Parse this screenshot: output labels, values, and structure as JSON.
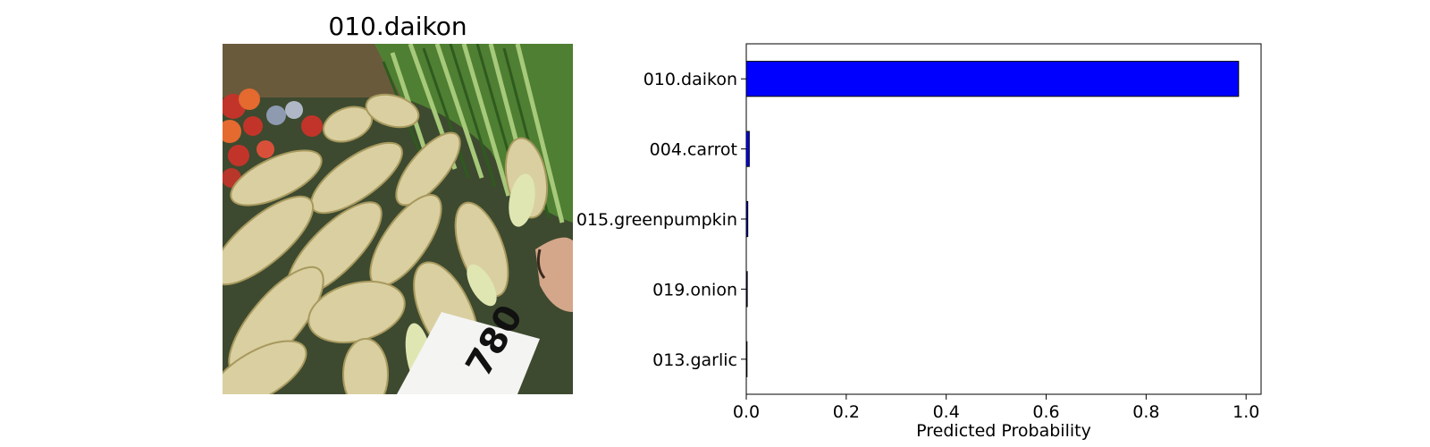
{
  "image_panel": {
    "title": "010.daikon",
    "sign_text": "780",
    "colors": {
      "background": "#3d4a2f",
      "daikon": "#d9cfa0",
      "daikon_shadow": "#a8995e",
      "daikon_tip": "#dfe6b2",
      "greens": "#4f7f32",
      "greens_light": "#a7c97a",
      "shelf_red": "#c2342a",
      "shelf_orange": "#e46a2f",
      "sign": "#f4f4f2"
    }
  },
  "chart_data": {
    "type": "bar",
    "orientation": "horizontal",
    "categories": [
      "010.daikon",
      "004.carrot",
      "015.greenpumpkin",
      "019.onion",
      "013.garlic"
    ],
    "values": [
      0.985,
      0.006,
      0.003,
      0.002,
      0.001
    ],
    "xlabel": "Predicted Probability",
    "ylabel": "",
    "xlim": [
      0.0,
      1.03
    ],
    "xticks": [
      "0.0",
      "0.2",
      "0.4",
      "0.6",
      "0.8",
      "1.0"
    ],
    "bar_color": "#0000ff",
    "edge_color": "#000000",
    "grid": false,
    "legend": "none"
  }
}
